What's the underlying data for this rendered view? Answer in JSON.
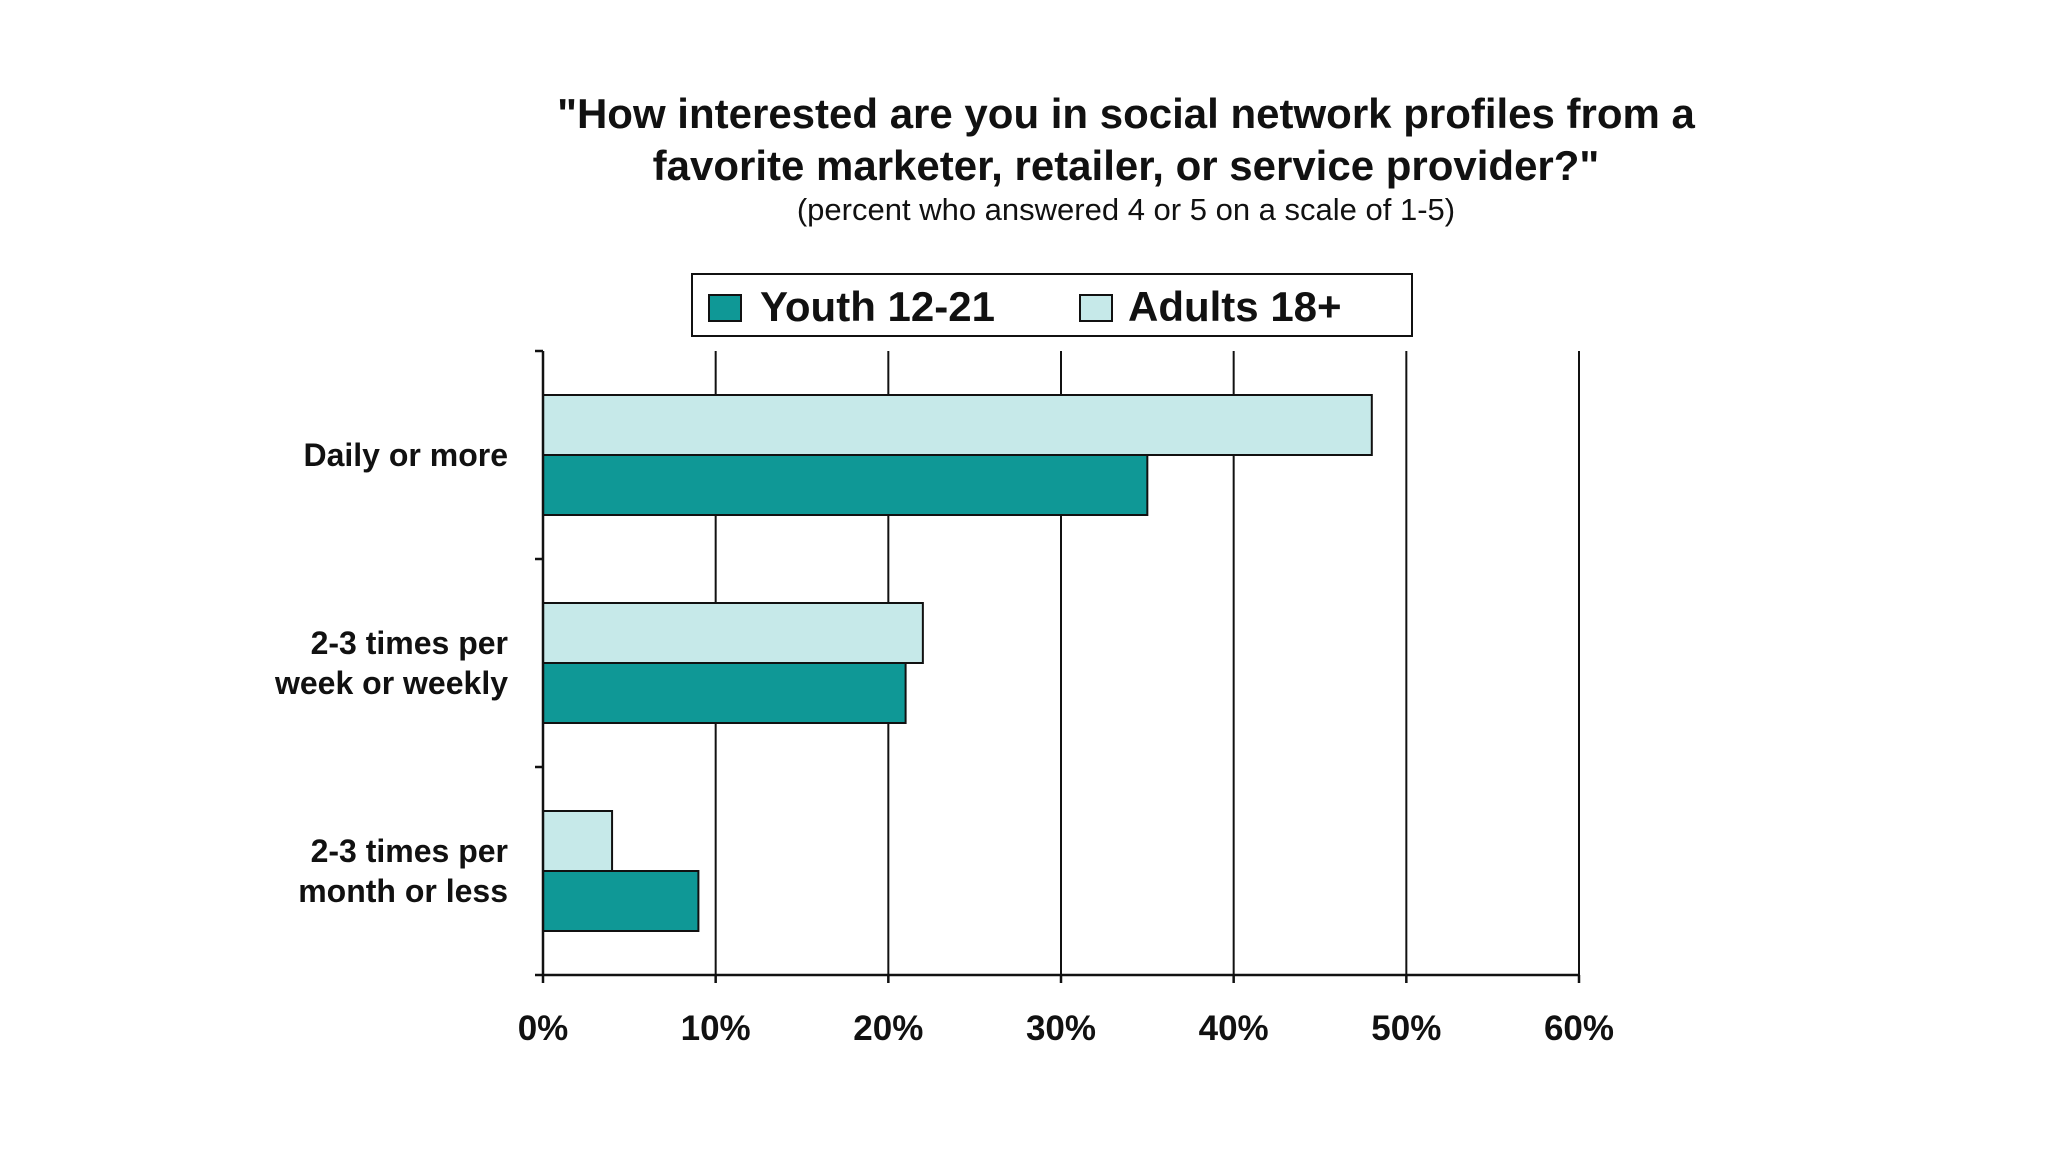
{
  "chart_data": {
    "type": "bar",
    "orientation": "horizontal",
    "title_lines": [
      "\"How interested are you in social network profiles from a",
      "favorite marketer, retailer, or service provider?\""
    ],
    "subtitle": "(percent who answered 4 or 5 on a scale of 1-5)",
    "categories": [
      [
        "Daily or more"
      ],
      [
        "2-3 times per",
        "week or weekly"
      ],
      [
        "2-3 times per",
        "month or less"
      ]
    ],
    "series": [
      {
        "name": "Youth 12-21",
        "values": [
          35,
          21,
          9
        ],
        "color": "#0f9896"
      },
      {
        "name": "Adults 18+",
        "values": [
          48,
          22,
          4
        ],
        "color": "#c6e9e9"
      }
    ],
    "xlim": [
      0,
      60
    ],
    "x_ticks": [
      "0%",
      "10%",
      "20%",
      "30%",
      "40%",
      "50%",
      "60%"
    ],
    "grid": true,
    "legend_position": "top"
  }
}
